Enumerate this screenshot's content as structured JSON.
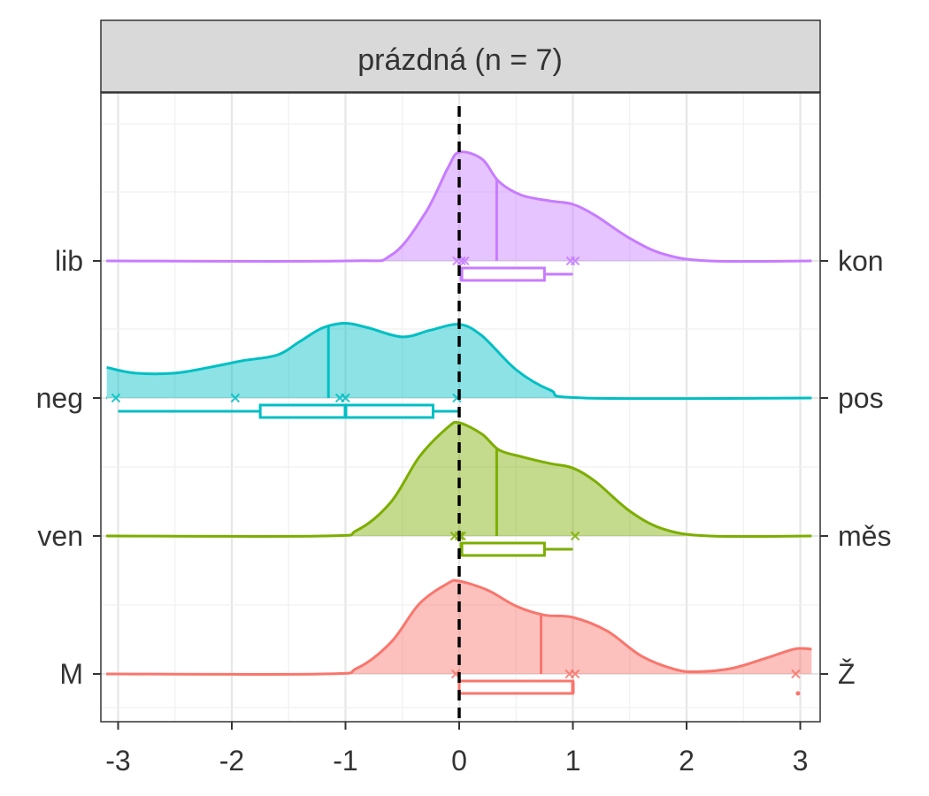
{
  "chart_data": {
    "type": "ridgeline",
    "facet_title": "prázdná (n = 7)",
    "xlim": [
      -3.1,
      3.1
    ],
    "x_ticks": [
      -3,
      -2,
      -1,
      0,
      1,
      2,
      3
    ],
    "x_tick_labels": [
      "-3",
      "-2",
      "-1",
      "0",
      "1",
      "2",
      "3"
    ],
    "reference_line_x": 0,
    "grid": true,
    "rows": [
      {
        "left_label": "lib",
        "right_label": "kon",
        "color": "#C77CFF",
        "density": [
          [
            -3.1,
            0
          ],
          [
            -1.0,
            0
          ],
          [
            -0.6,
            0.05
          ],
          [
            -0.3,
            0.42
          ],
          [
            -0.1,
            0.82
          ],
          [
            0.0,
            0.96
          ],
          [
            0.2,
            0.9
          ],
          [
            0.35,
            0.7
          ],
          [
            0.55,
            0.58
          ],
          [
            0.8,
            0.53
          ],
          [
            1.0,
            0.5
          ],
          [
            1.2,
            0.4
          ],
          [
            1.5,
            0.2
          ],
          [
            1.8,
            0.06
          ],
          [
            2.2,
            0
          ],
          [
            3.1,
            0
          ]
        ],
        "median": 0.33,
        "points": [
          -0.02,
          0.02,
          0.05,
          0.98,
          1.02
        ],
        "box": {
          "min": 0.0,
          "q1": 0.02,
          "median": 0.02,
          "q3": 0.75,
          "max": 1.0
        }
      },
      {
        "left_label": "neg",
        "right_label": "pos",
        "color": "#00BFC4",
        "density": [
          [
            -3.1,
            0.27
          ],
          [
            -2.85,
            0.22
          ],
          [
            -2.5,
            0.22
          ],
          [
            -2.2,
            0.27
          ],
          [
            -1.9,
            0.33
          ],
          [
            -1.6,
            0.38
          ],
          [
            -1.4,
            0.5
          ],
          [
            -1.2,
            0.62
          ],
          [
            -1.0,
            0.66
          ],
          [
            -0.8,
            0.62
          ],
          [
            -0.5,
            0.54
          ],
          [
            -0.25,
            0.6
          ],
          [
            0.0,
            0.65
          ],
          [
            0.2,
            0.55
          ],
          [
            0.5,
            0.25
          ],
          [
            0.8,
            0.07
          ],
          [
            1.1,
            0
          ],
          [
            3.1,
            0
          ]
        ],
        "median": -1.15,
        "points": [
          -3.02,
          -1.97,
          -1.05,
          -1.0,
          -0.02
        ],
        "box": {
          "min": -3.0,
          "q1": -1.75,
          "median": -1.0,
          "q3": -0.23,
          "max": 0.0
        }
      },
      {
        "left_label": "ven",
        "right_label": "měs",
        "color": "#7CAE00",
        "density": [
          [
            -3.1,
            0
          ],
          [
            -1.2,
            0
          ],
          [
            -0.9,
            0.05
          ],
          [
            -0.6,
            0.3
          ],
          [
            -0.35,
            0.7
          ],
          [
            -0.1,
            0.96
          ],
          [
            0.0,
            1.0
          ],
          [
            0.2,
            0.9
          ],
          [
            0.35,
            0.76
          ],
          [
            0.55,
            0.7
          ],
          [
            0.8,
            0.64
          ],
          [
            1.0,
            0.6
          ],
          [
            1.2,
            0.48
          ],
          [
            1.5,
            0.22
          ],
          [
            1.8,
            0.06
          ],
          [
            2.2,
            0
          ],
          [
            3.1,
            0
          ]
        ],
        "median": 0.33,
        "points": [
          -0.04,
          0.0,
          0.02,
          1.02
        ],
        "box": {
          "min": 0.0,
          "q1": 0.02,
          "median": 0.02,
          "q3": 0.75,
          "max": 1.0
        }
      },
      {
        "left_label": "M",
        "right_label": "Ž",
        "color": "#F8766D",
        "density": [
          [
            -3.1,
            0
          ],
          [
            -1.2,
            0
          ],
          [
            -0.9,
            0.05
          ],
          [
            -0.6,
            0.28
          ],
          [
            -0.35,
            0.62
          ],
          [
            -0.1,
            0.8
          ],
          [
            0.0,
            0.82
          ],
          [
            0.25,
            0.74
          ],
          [
            0.5,
            0.6
          ],
          [
            0.75,
            0.52
          ],
          [
            1.0,
            0.5
          ],
          [
            1.3,
            0.38
          ],
          [
            1.6,
            0.16
          ],
          [
            1.9,
            0.04
          ],
          [
            2.1,
            0.02
          ],
          [
            2.4,
            0.05
          ],
          [
            2.7,
            0.14
          ],
          [
            2.95,
            0.22
          ],
          [
            3.1,
            0.22
          ]
        ],
        "median": 0.72,
        "points": [
          -0.03,
          0.97,
          1.02,
          2.96
        ],
        "box": {
          "min": 0.0,
          "q1": 0.0,
          "median": 1.0,
          "q3": 1.0,
          "max": 1.0,
          "outliers": [
            2.98
          ]
        }
      }
    ]
  }
}
